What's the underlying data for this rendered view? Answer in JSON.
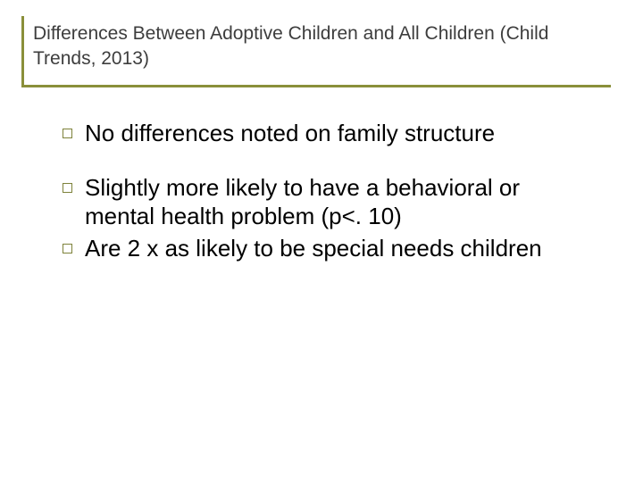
{
  "slide": {
    "title": "Differences Between Adoptive Children and All Children (Child Trends, 2013)",
    "title_color": "#3d3d3d",
    "title_fontsize": 21,
    "border_color": "#8a8f3a",
    "bullet_border_color": "#7d823a",
    "body_fontsize": 26,
    "body_color": "#000000",
    "background_color": "#ffffff",
    "groups": [
      {
        "items": [
          {
            "text": "No differences noted on family structure"
          }
        ]
      },
      {
        "items": [
          {
            "text": "Slightly more likely to have a behavioral or mental health problem (p<. 10)"
          },
          {
            "text": "Are 2 x as likely to be special needs children"
          }
        ]
      }
    ]
  }
}
